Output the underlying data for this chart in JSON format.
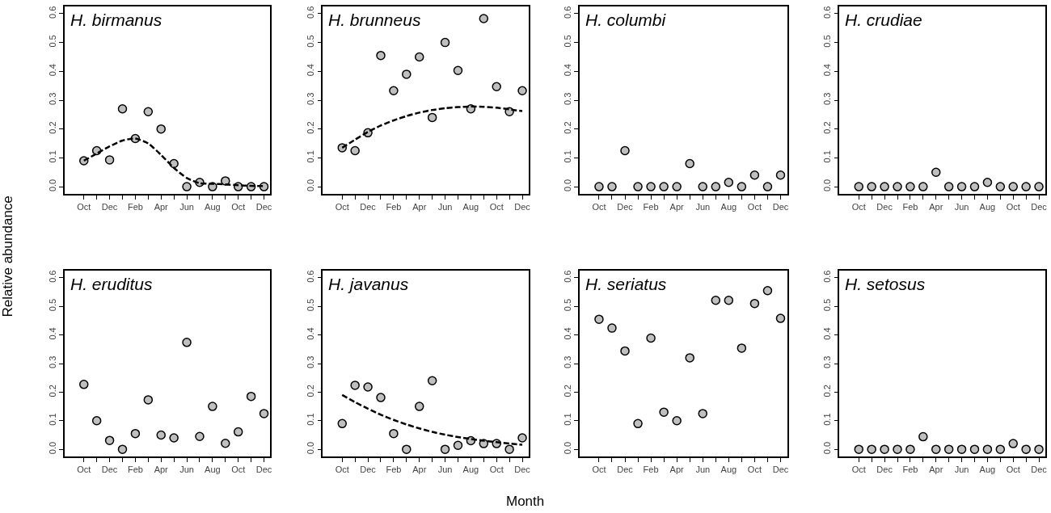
{
  "chart_data": [
    {
      "type": "scatter",
      "title": "H. birmanus",
      "ylabel": "Relative abundance",
      "categories": [
        "Oct",
        null,
        "Dec",
        null,
        "Feb",
        null,
        "Apr",
        null,
        "Jun",
        null,
        "Aug",
        null,
        "Oct",
        null,
        "Dec"
      ],
      "ylim": [
        -0.025,
        0.625
      ],
      "yticks": [
        {
          "value": 0,
          "label": "0.0"
        },
        {
          "value": 0.1,
          "label": "0.1"
        },
        {
          "value": 0.2,
          "label": "0.2"
        },
        {
          "value": 0.3,
          "label": "0.3"
        },
        {
          "value": 0.4,
          "label": "0.4"
        },
        {
          "value": 0.5,
          "label": "0.5"
        },
        {
          "value": 0.6,
          "label": "0.6"
        }
      ],
      "marker": "circle",
      "series": [
        {
          "color": "#bfbfbf",
          "values": [
            0.09,
            0.125,
            0.093,
            0.27,
            0.167,
            0.26,
            0.2,
            0.08,
            0,
            0.015,
            0,
            0.02,
            0,
            0,
            0
          ]
        },
        {
          "type": "line",
          "color": "#000000",
          "line_style": "dashed",
          "marker": "none",
          "values": [
            0.09,
            0.115,
            0.14,
            0.16,
            0.167,
            0.15,
            0.11,
            0.065,
            0.03,
            0.012,
            0.01,
            0.008,
            0.005,
            0.003,
            0.002
          ]
        }
      ]
    },
    {
      "type": "scatter",
      "title": "H. brunneus",
      "categories": [
        "Oct",
        null,
        "Dec",
        null,
        "Feb",
        null,
        "Apr",
        null,
        "Jun",
        null,
        "Aug",
        null,
        "Oct",
        null,
        "Dec"
      ],
      "ylim": [
        -0.025,
        0.625
      ],
      "yticks": [
        {
          "value": 0,
          "label": "0.0"
        },
        {
          "value": 0.1,
          "label": "0.1"
        },
        {
          "value": 0.2,
          "label": "0.2"
        },
        {
          "value": 0.3,
          "label": "0.3"
        },
        {
          "value": 0.4,
          "label": "0.4"
        },
        {
          "value": 0.5,
          "label": "0.5"
        },
        {
          "value": 0.6,
          "label": "0.6"
        }
      ],
      "marker": "circle",
      "series": [
        {
          "color": "#bfbfbf",
          "values": [
            0.135,
            0.125,
            0.187,
            0.455,
            0.333,
            0.39,
            0.45,
            0.24,
            0.5,
            0.403,
            0.27,
            0.583,
            0.347,
            0.26,
            0.333
          ]
        },
        {
          "type": "line",
          "color": "#000000",
          "line_style": "dashed",
          "marker": "none",
          "values": [
            0.135,
            0.163,
            0.19,
            0.212,
            0.23,
            0.245,
            0.257,
            0.266,
            0.272,
            0.276,
            0.278,
            0.277,
            0.274,
            0.268,
            0.262
          ]
        }
      ]
    },
    {
      "type": "scatter",
      "title": "H. columbi",
      "categories": [
        "Oct",
        null,
        "Dec",
        null,
        "Feb",
        null,
        "Apr",
        null,
        "Jun",
        null,
        "Aug",
        null,
        "Oct",
        null,
        "Dec"
      ],
      "ylim": [
        -0.025,
        0.625
      ],
      "yticks": [
        {
          "value": 0,
          "label": "0.0"
        },
        {
          "value": 0.1,
          "label": "0.1"
        },
        {
          "value": 0.2,
          "label": "0.2"
        },
        {
          "value": 0.3,
          "label": "0.3"
        },
        {
          "value": 0.4,
          "label": "0.4"
        },
        {
          "value": 0.5,
          "label": "0.5"
        },
        {
          "value": 0.6,
          "label": "0.6"
        }
      ],
      "marker": "circle",
      "series": [
        {
          "color": "#bfbfbf",
          "values": [
            0,
            0,
            0.125,
            0,
            0,
            0,
            0,
            0.08,
            0,
            0,
            0.015,
            0,
            0.04,
            0,
            0.04
          ]
        }
      ]
    },
    {
      "type": "scatter",
      "title": "H. crudiae",
      "categories": [
        "Oct",
        null,
        "Dec",
        null,
        "Feb",
        null,
        "Apr",
        null,
        "Jun",
        null,
        "Aug",
        null,
        "Oct",
        null,
        "Dec"
      ],
      "ylim": [
        -0.025,
        0.625
      ],
      "yticks": [
        {
          "value": 0,
          "label": "0.0"
        },
        {
          "value": 0.1,
          "label": "0.1"
        },
        {
          "value": 0.2,
          "label": "0.2"
        },
        {
          "value": 0.3,
          "label": "0.3"
        },
        {
          "value": 0.4,
          "label": "0.4"
        },
        {
          "value": 0.5,
          "label": "0.5"
        },
        {
          "value": 0.6,
          "label": "0.6"
        }
      ],
      "marker": "circle",
      "series": [
        {
          "color": "#bfbfbf",
          "values": [
            0,
            0,
            0,
            0,
            0,
            0,
            0.05,
            0,
            0,
            0,
            0.015,
            0,
            0,
            0,
            0
          ]
        }
      ]
    },
    {
      "type": "scatter",
      "title": "H. eruditus",
      "categories": [
        "Oct",
        null,
        "Dec",
        null,
        "Feb",
        null,
        "Apr",
        null,
        "Jun",
        null,
        "Aug",
        null,
        "Oct",
        null,
        "Dec"
      ],
      "ylim": [
        -0.025,
        0.625
      ],
      "yticks": [
        {
          "value": 0,
          "label": "0.0"
        },
        {
          "value": 0.1,
          "label": "0.1"
        },
        {
          "value": 0.2,
          "label": "0.2"
        },
        {
          "value": 0.3,
          "label": "0.3"
        },
        {
          "value": 0.4,
          "label": "0.4"
        },
        {
          "value": 0.5,
          "label": "0.5"
        },
        {
          "value": 0.6,
          "label": "0.6"
        }
      ],
      "marker": "circle",
      "series": [
        {
          "color": "#bfbfbf",
          "values": [
            0.227,
            0.1,
            0.031,
            0,
            0.055,
            0.173,
            0.05,
            0.04,
            0.374,
            0.045,
            0.15,
            0.021,
            0.061,
            0.185,
            0.125
          ]
        }
      ]
    },
    {
      "type": "scatter",
      "title": "H. javanus",
      "xlabel": "Month",
      "categories": [
        "Oct",
        null,
        "Dec",
        null,
        "Feb",
        null,
        "Apr",
        null,
        "Jun",
        null,
        "Aug",
        null,
        "Oct",
        null,
        "Dec"
      ],
      "ylim": [
        -0.025,
        0.625
      ],
      "yticks": [
        {
          "value": 0,
          "label": "0.0"
        },
        {
          "value": 0.1,
          "label": "0.1"
        },
        {
          "value": 0.2,
          "label": "0.2"
        },
        {
          "value": 0.3,
          "label": "0.3"
        },
        {
          "value": 0.4,
          "label": "0.4"
        },
        {
          "value": 0.5,
          "label": "0.5"
        },
        {
          "value": 0.6,
          "label": "0.6"
        }
      ],
      "marker": "circle",
      "series": [
        {
          "color": "#bfbfbf",
          "values": [
            0.09,
            0.224,
            0.218,
            0.181,
            0.055,
            0,
            0.15,
            0.24,
            0,
            0.014,
            0.03,
            0.02,
            0.02,
            0,
            0.04
          ]
        },
        {
          "type": "line",
          "color": "#000000",
          "line_style": "dashed",
          "marker": "none",
          "values": [
            0.19,
            0.165,
            0.142,
            0.121,
            0.103,
            0.087,
            0.073,
            0.061,
            0.051,
            0.043,
            0.036,
            0.03,
            0.025,
            0.02,
            0.016
          ]
        }
      ]
    },
    {
      "type": "scatter",
      "title": "H. seriatus",
      "categories": [
        "Oct",
        null,
        "Dec",
        null,
        "Feb",
        null,
        "Apr",
        null,
        "Jun",
        null,
        "Aug",
        null,
        "Oct",
        null,
        "Dec"
      ],
      "ylim": [
        -0.025,
        0.625
      ],
      "yticks": [
        {
          "value": 0,
          "label": "0.0"
        },
        {
          "value": 0.1,
          "label": "0.1"
        },
        {
          "value": 0.2,
          "label": "0.2"
        },
        {
          "value": 0.3,
          "label": "0.3"
        },
        {
          "value": 0.4,
          "label": "0.4"
        },
        {
          "value": 0.5,
          "label": "0.5"
        },
        {
          "value": 0.6,
          "label": "0.6"
        }
      ],
      "marker": "circle",
      "series": [
        {
          "color": "#bfbfbf",
          "values": [
            0.455,
            0.424,
            0.344,
            0.09,
            0.389,
            0.13,
            0.1,
            0.32,
            0.125,
            0.521,
            0.521,
            0.354,
            0.51,
            0.555,
            0.458
          ]
        }
      ]
    },
    {
      "type": "scatter",
      "title": "H. setosus",
      "categories": [
        "Oct",
        null,
        "Dec",
        null,
        "Feb",
        null,
        "Apr",
        null,
        "Jun",
        null,
        "Aug",
        null,
        "Oct",
        null,
        "Dec"
      ],
      "ylim": [
        -0.025,
        0.625
      ],
      "yticks": [
        {
          "value": 0,
          "label": "0.0"
        },
        {
          "value": 0.1,
          "label": "0.1"
        },
        {
          "value": 0.2,
          "label": "0.2"
        },
        {
          "value": 0.3,
          "label": "0.3"
        },
        {
          "value": 0.4,
          "label": "0.4"
        },
        {
          "value": 0.5,
          "label": "0.5"
        },
        {
          "value": 0.6,
          "label": "0.6"
        }
      ],
      "marker": "circle",
      "series": [
        {
          "color": "#bfbfbf",
          "values": [
            0,
            0,
            0,
            0,
            0,
            0.044,
            0,
            0,
            0,
            0,
            0,
            0,
            0.02,
            0,
            0
          ]
        }
      ]
    }
  ]
}
